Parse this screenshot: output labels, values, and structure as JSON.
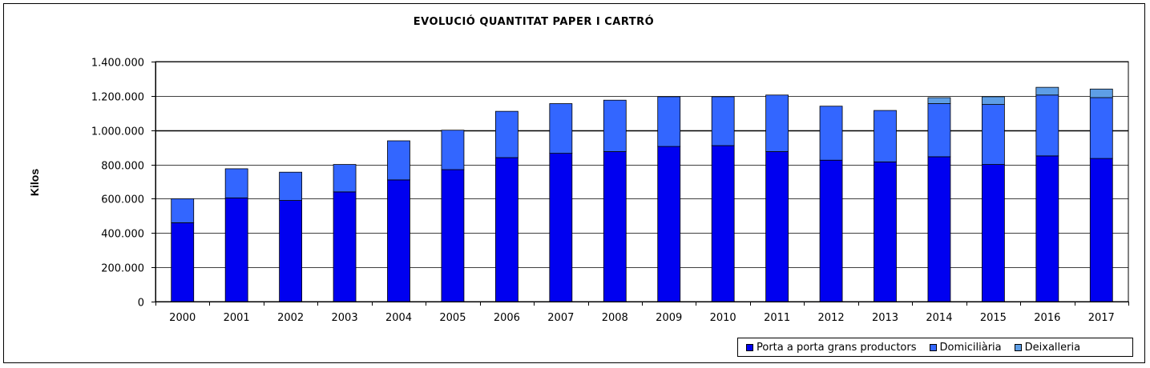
{
  "chart_data": {
    "type": "bar",
    "stacked": true,
    "title": "EVOLUCIÓ  QUANTITAT  PAPER  I  CARTRÓ",
    "xlabel": "",
    "ylabel": "Kilos",
    "ylim": [
      0,
      1400000
    ],
    "yticks": [
      0,
      200000,
      400000,
      600000,
      800000,
      1000000,
      1200000,
      1400000
    ],
    "ytick_labels": [
      "0",
      "200.000",
      "400.000",
      "600.000",
      "800.000",
      "1.000.000",
      "1.200.000",
      "1.400.000"
    ],
    "grid": true,
    "legend_position": "bottom-right",
    "categories": [
      "2000",
      "2001",
      "2002",
      "2003",
      "2004",
      "2005",
      "2006",
      "2007",
      "2008",
      "2009",
      "2010",
      "2011",
      "2012",
      "2013",
      "2014",
      "2015",
      "2016",
      "2017"
    ],
    "series": [
      {
        "name": "Porta a porta grans productors",
        "color": "#0000f0",
        "values": [
          460000,
          605000,
          590000,
          640000,
          710000,
          770000,
          840000,
          865000,
          875000,
          905000,
          910000,
          875000,
          825000,
          815000,
          845000,
          800000,
          850000,
          835000
        ]
      },
      {
        "name": "Domiciliària",
        "color": "#3366ff",
        "values": [
          140000,
          170000,
          165000,
          160000,
          228000,
          230000,
          270000,
          290000,
          300000,
          290000,
          285000,
          330000,
          315000,
          300000,
          310000,
          350000,
          355000,
          355000
        ]
      },
      {
        "name": "Deixalleria",
        "color": "#5e9ee6",
        "values": [
          0,
          0,
          0,
          0,
          0,
          0,
          0,
          0,
          0,
          0,
          0,
          0,
          0,
          0,
          35000,
          45000,
          45000,
          50000
        ]
      }
    ]
  }
}
